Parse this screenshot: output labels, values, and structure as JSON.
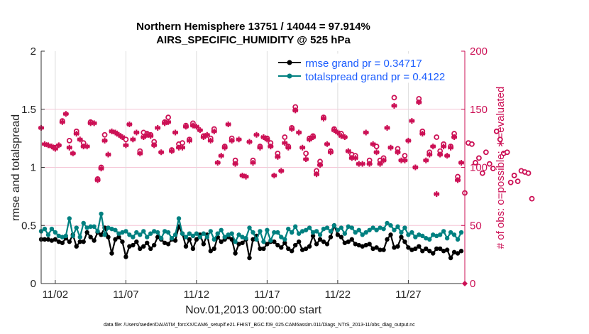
{
  "chart_data": {
    "type": "line",
    "title": [
      "Northern Hemisphere 13751 / 14044 = 97.914%",
      "AIRS_SPECIFIC_HUMIDITY @ 525 hPa"
    ],
    "xlabel": "Nov.01,2013 00:00:00 start",
    "ylabel_left": "rmse and totalspread",
    "ylabel_right": "# of obs: o=possible; ∗=evaluated",
    "footer": "data file: /Users/raeder/DAI/ATM_forcXX/CAM6_setup/f.e21.FHIST_BGC.f09_025.CAM6assim.011/Diags_NTrS_2013-11/obs_diag_output.nc",
    "x_unit": "days since Nov 1 2013",
    "x_step_days": 0.25,
    "xlim": [
      0,
      30
    ],
    "ylim_left": [
      0,
      2
    ],
    "ylim_right": [
      0,
      200
    ],
    "xticks": [
      {
        "day": 1,
        "label": "11/02"
      },
      {
        "day": 6,
        "label": "11/07"
      },
      {
        "day": 11,
        "label": "11/12"
      },
      {
        "day": 16,
        "label": "11/17"
      },
      {
        "day": 21,
        "label": "11/22"
      },
      {
        "day": 26,
        "label": "11/27"
      }
    ],
    "yticks_left": [
      {
        "v": 0,
        "label": "0"
      },
      {
        "v": 0.5,
        "label": "0.5"
      },
      {
        "v": 1,
        "label": "1"
      },
      {
        "v": 1.5,
        "label": "1.5"
      },
      {
        "v": 2,
        "label": "2"
      }
    ],
    "yticks_right": [
      {
        "v": 0,
        "label": "0"
      },
      {
        "v": 50,
        "label": "50"
      },
      {
        "v": 100,
        "label": "100"
      },
      {
        "v": 150,
        "label": "150"
      },
      {
        "v": 200,
        "label": "200"
      }
    ],
    "legend": {
      "placement": "top-right",
      "entries": [
        "rmse grand pr = 0.34717",
        "totalspread grand pr = 0.4122"
      ]
    },
    "colors": {
      "rmse": "#000000",
      "spread": "#008080",
      "obs": "#cc1055",
      "legend_text": "#1a5cff"
    },
    "series": [
      {
        "name": "rmse",
        "axis": "left",
        "values": [
          0.38,
          0.38,
          0.38,
          0.37,
          0.38,
          0.36,
          0.35,
          0.39,
          0.36,
          0.42,
          0.32,
          0.36,
          0.36,
          0.44,
          0.4,
          0.37,
          0.44,
          0.42,
          0.48,
          0.4,
          0.26,
          0.38,
          0.4,
          0.36,
          0.23,
          0.32,
          0.33,
          0.36,
          0.3,
          0.32,
          0.35,
          0.3,
          0.33,
          0.4,
          0.38,
          0.35,
          0.34,
          0.38,
          0.37,
          0.49,
          0.43,
          0.32,
          0.38,
          0.3,
          0.38,
          0.42,
          0.34,
          0.42,
          0.28,
          0.3,
          0.4,
          0.36,
          0.38,
          0.4,
          0.38,
          0.26,
          0.34,
          0.35,
          0.38,
          0.22,
          0.38,
          0.41,
          0.3,
          0.3,
          0.34,
          0.36,
          0.36,
          0.33,
          0.31,
          0.35,
          0.3,
          0.28,
          0.33,
          0.36,
          0.29,
          0.3,
          0.32,
          0.41,
          0.34,
          0.38,
          0.36,
          0.34,
          0.4,
          0.5,
          0.42,
          0.4,
          0.35,
          0.36,
          0.38,
          0.34,
          0.33,
          0.32,
          0.33,
          0.34,
          0.3,
          0.31,
          0.29,
          0.29,
          0.38,
          0.42,
          0.31,
          0.32,
          0.4,
          0.36,
          0.31,
          0.29,
          0.3,
          0.32,
          0.28,
          0.3,
          0.28,
          0.26,
          0.3,
          0.3,
          0.28,
          0.29,
          0.22,
          0.27,
          0.26,
          0.28
        ]
      },
      {
        "name": "totalspread",
        "axis": "left",
        "values": [
          0.45,
          0.47,
          0.42,
          0.47,
          0.44,
          0.41,
          0.4,
          0.41,
          0.56,
          0.41,
          0.48,
          0.4,
          0.52,
          0.48,
          0.49,
          0.49,
          0.45,
          0.6,
          0.42,
          0.48,
          0.47,
          0.46,
          0.43,
          0.44,
          0.45,
          0.42,
          0.4,
          0.44,
          0.42,
          0.45,
          0.4,
          0.43,
          0.45,
          0.44,
          0.39,
          0.45,
          0.44,
          0.39,
          0.42,
          0.56,
          0.43,
          0.4,
          0.43,
          0.41,
          0.43,
          0.4,
          0.43,
          0.4,
          0.45,
          0.38,
          0.43,
          0.46,
          0.4,
          0.42,
          0.43,
          0.36,
          0.42,
          0.4,
          0.39,
          0.48,
          0.44,
          0.38,
          0.45,
          0.36,
          0.46,
          0.37,
          0.44,
          0.44,
          0.4,
          0.38,
          0.47,
          0.44,
          0.49,
          0.43,
          0.45,
          0.46,
          0.48,
          0.44,
          0.45,
          0.42,
          0.47,
          0.48,
          0.45,
          0.5,
          0.46,
          0.48,
          0.43,
          0.49,
          0.48,
          0.44,
          0.46,
          0.42,
          0.44,
          0.46,
          0.48,
          0.46,
          0.48,
          0.47,
          0.52,
          0.5,
          0.46,
          0.49,
          0.44,
          0.48,
          0.42,
          0.44,
          0.4,
          0.42,
          0.41,
          0.39,
          0.38,
          0.42,
          0.41,
          0.42,
          0.45,
          0.39,
          0.44,
          0.42,
          0.38,
          0.44
        ]
      },
      {
        "name": "obs_possible",
        "axis": "right",
        "values": [
          134,
          120,
          119,
          118,
          117,
          119,
          140,
          146,
          123,
          112,
          131,
          124,
          121,
          118,
          139,
          138,
          90,
          100,
          128,
          111,
          131,
          130,
          128,
          126,
          124,
          137,
          124,
          130,
          114,
          130,
          129,
          128,
          122,
          134,
          113,
          139,
          143,
          115,
          130,
          120,
          121,
          136,
          124,
          138,
          135,
          132,
          127,
          128,
          125,
          133,
          104,
          110,
          118,
          137,
          125,
          106,
          124,
          93,
          92,
          122,
          106,
          128,
          118,
          126,
          125,
          121,
          93,
          112,
          97,
          126,
          118,
          134,
          152,
          130,
          117,
          112,
          125,
          127,
          97,
          105,
          143,
          120,
          114,
          133,
          130,
          129,
          126,
          114,
          111,
          110,
          103,
          103,
          130,
          106,
          120,
          118,
          106,
          108,
          134,
          117,
          160,
          116,
          106,
          110,
          123,
          140,
          100,
          159,
          131,
          106,
          113,
          118,
          126,
          114,
          120,
          110,
          118,
          129,
          92,
          104,
          78,
          121,
          120,
          104,
          108,
          95,
          113,
          103,
          99,
          131,
          124,
          112,
          113,
          87,
          93,
          88,
          97,
          96,
          95,
          73,
          0
        ]
      },
      {
        "name": "obs_evaluated",
        "axis": "right",
        "values": [
          134,
          120,
          119,
          118,
          116,
          119,
          139,
          146,
          117,
          112,
          129,
          124,
          118,
          118,
          138,
          138,
          89,
          99,
          123,
          111,
          131,
          130,
          128,
          126,
          119,
          137,
          124,
          130,
          112,
          126,
          128,
          127,
          119,
          134,
          113,
          138,
          139,
          114,
          130,
          117,
          117,
          135,
          123,
          136,
          135,
          132,
          126,
          128,
          123,
          131,
          104,
          110,
          117,
          137,
          123,
          103,
          124,
          93,
          92,
          122,
          104,
          128,
          117,
          126,
          124,
          118,
          93,
          109,
          97,
          121,
          117,
          133,
          149,
          130,
          117,
          107,
          124,
          126,
          94,
          102,
          142,
          120,
          113,
          132,
          130,
          127,
          126,
          114,
          108,
          108,
          103,
          103,
          130,
          103,
          120,
          113,
          103,
          106,
          134,
          117,
          153,
          113,
          106,
          106,
          123,
          140,
          100,
          156,
          129,
          106,
          111,
          118,
          77,
          111,
          118,
          110,
          117,
          126,
          89,
          104,
          0
        ]
      }
    ]
  }
}
